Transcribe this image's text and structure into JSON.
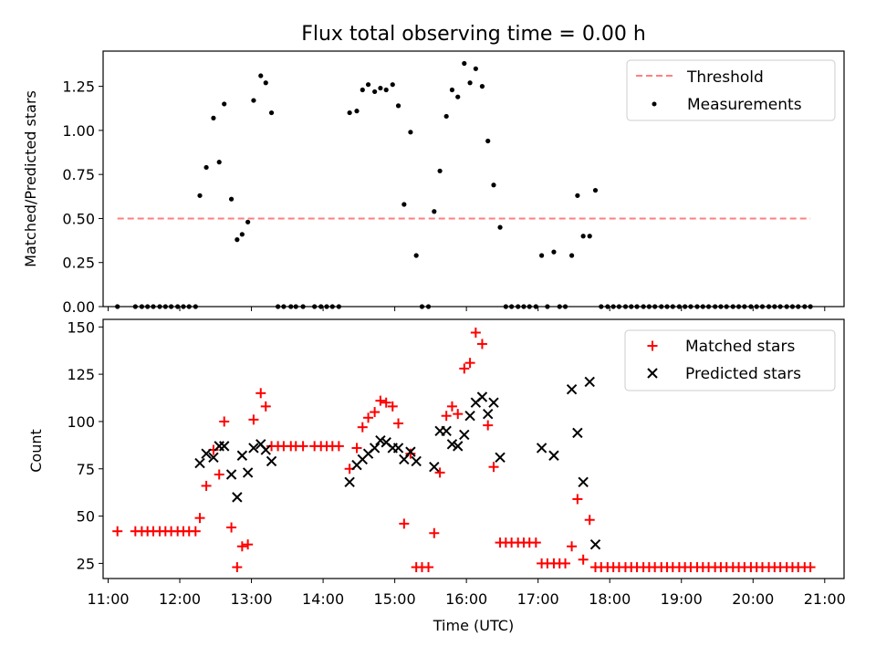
{
  "chart_data": [
    {
      "type": "scatter",
      "title": "Flux total observing time = 0.00 h",
      "xlabel": "",
      "ylabel": "Matched/Predicted stars",
      "xlim": [
        10.93,
        21.27
      ],
      "ylim": [
        0,
        1.45
      ],
      "yticks": [
        0.0,
        0.25,
        0.5,
        0.75,
        1.0,
        1.25
      ],
      "ytick_labels": [
        "0.00",
        "0.25",
        "0.50",
        "0.75",
        "1.00",
        "1.25"
      ],
      "legend_position": "top-right",
      "threshold": {
        "name": "Threshold",
        "value": 0.5,
        "x_range": [
          11.13,
          20.8
        ],
        "color": "#ff7f7f"
      },
      "series": [
        {
          "name": "Measurements",
          "color": "#000000",
          "marker": "dot",
          "x": [
            11.13,
            11.38,
            11.47,
            11.55,
            11.63,
            11.72,
            11.8,
            11.88,
            11.97,
            12.05,
            12.13,
            12.22,
            12.28,
            12.37,
            12.47,
            12.55,
            12.62,
            12.72,
            12.8,
            12.87,
            12.95,
            13.03,
            13.13,
            13.2,
            13.28,
            13.37,
            13.45,
            13.55,
            13.62,
            13.72,
            13.88,
            13.97,
            14.05,
            14.13,
            14.22,
            14.37,
            14.47,
            14.55,
            14.63,
            14.72,
            14.8,
            14.88,
            14.97,
            15.05,
            15.13,
            15.22,
            15.3,
            15.38,
            15.47,
            15.55,
            15.63,
            15.72,
            15.8,
            15.88,
            15.97,
            16.05,
            16.13,
            16.22,
            16.3,
            16.38,
            16.47,
            16.55,
            16.63,
            16.72,
            16.8,
            16.88,
            16.97,
            17.05,
            17.13,
            17.22,
            17.3,
            17.38,
            17.47,
            17.55,
            17.63,
            17.72,
            17.8,
            17.88,
            17.97,
            18.05,
            18.13,
            18.22,
            18.3,
            18.38,
            18.47,
            18.55,
            18.63,
            18.72,
            18.8,
            18.88,
            18.97,
            19.05,
            19.13,
            19.22,
            19.3,
            19.38,
            19.47,
            19.55,
            19.63,
            19.72,
            19.8,
            19.88,
            19.97,
            20.05,
            20.13,
            20.22,
            20.3,
            20.38,
            20.47,
            20.55,
            20.63,
            20.72,
            20.8
          ],
          "y": [
            0.0,
            0.0,
            0.0,
            0.0,
            0.0,
            0.0,
            0.0,
            0.0,
            0.0,
            0.0,
            0.0,
            0.0,
            0.63,
            0.79,
            1.07,
            0.82,
            1.15,
            0.61,
            0.38,
            0.41,
            0.48,
            1.17,
            1.31,
            1.27,
            1.1,
            0.0,
            0.0,
            0.0,
            0.0,
            0.0,
            0.0,
            0.0,
            0.0,
            0.0,
            0.0,
            1.1,
            1.11,
            1.23,
            1.26,
            1.22,
            1.24,
            1.23,
            1.26,
            1.14,
            0.58,
            0.99,
            0.29,
            0.0,
            0.0,
            0.54,
            0.77,
            1.08,
            1.23,
            1.19,
            1.38,
            1.27,
            1.35,
            1.25,
            0.94,
            0.69,
            0.45,
            0.0,
            0.0,
            0.0,
            0.0,
            0.0,
            0.0,
            0.29,
            0.0,
            0.31,
            0.0,
            0.0,
            0.29,
            0.63,
            0.4,
            0.4,
            0.66,
            0.0,
            0.0,
            0.0,
            0.0,
            0.0,
            0.0,
            0.0,
            0.0,
            0.0,
            0.0,
            0.0,
            0.0,
            0.0,
            0.0,
            0.0,
            0.0,
            0.0,
            0.0,
            0.0,
            0.0,
            0.0,
            0.0,
            0.0,
            0.0,
            0.0,
            0.0,
            0.0,
            0.0,
            0.0,
            0.0,
            0.0,
            0.0,
            0.0,
            0.0,
            0.0,
            0.0
          ]
        }
      ]
    },
    {
      "type": "scatter",
      "title": "",
      "xlabel": "Time (UTC)",
      "ylabel": "Count",
      "xlim": [
        10.93,
        21.27
      ],
      "ylim": [
        17,
        154
      ],
      "xticks": [
        11,
        12,
        13,
        14,
        15,
        16,
        17,
        18,
        19,
        20,
        21
      ],
      "xtick_labels": [
        "11:00",
        "12:00",
        "13:00",
        "14:00",
        "15:00",
        "16:00",
        "17:00",
        "18:00",
        "19:00",
        "20:00",
        "21:00"
      ],
      "yticks": [
        25,
        50,
        75,
        100,
        125,
        150
      ],
      "ytick_labels": [
        "25",
        "50",
        "75",
        "100",
        "125",
        "150"
      ],
      "legend_position": "top-right",
      "series": [
        {
          "name": "Matched stars",
          "color": "#ff0000",
          "marker": "plus",
          "x": [
            11.13,
            11.38,
            11.47,
            11.55,
            11.63,
            11.72,
            11.8,
            11.88,
            11.97,
            12.05,
            12.13,
            12.22,
            12.28,
            12.37,
            12.47,
            12.55,
            12.62,
            12.72,
            12.8,
            12.87,
            12.95,
            13.03,
            13.13,
            13.2,
            13.28,
            13.37,
            13.45,
            13.55,
            13.62,
            13.72,
            13.88,
            13.97,
            14.05,
            14.13,
            14.22,
            14.37,
            14.47,
            14.55,
            14.63,
            14.72,
            14.8,
            14.88,
            14.97,
            15.05,
            15.13,
            15.22,
            15.3,
            15.38,
            15.47,
            15.55,
            15.63,
            15.72,
            15.8,
            15.88,
            15.97,
            16.05,
            16.13,
            16.22,
            16.3,
            16.38,
            16.47,
            16.55,
            16.63,
            16.72,
            16.8,
            16.88,
            16.97,
            17.05,
            17.13,
            17.22,
            17.3,
            17.38,
            17.47,
            17.55,
            17.63,
            17.72,
            17.8,
            17.88,
            17.97,
            18.05,
            18.13,
            18.22,
            18.3,
            18.38,
            18.47,
            18.55,
            18.63,
            18.72,
            18.8,
            18.88,
            18.97,
            19.05,
            19.13,
            19.22,
            19.3,
            19.38,
            19.47,
            19.55,
            19.63,
            19.72,
            19.8,
            19.88,
            19.97,
            20.05,
            20.13,
            20.22,
            20.3,
            20.38,
            20.47,
            20.55,
            20.63,
            20.72,
            20.8
          ],
          "y": [
            42,
            42,
            42,
            42,
            42,
            42,
            42,
            42,
            42,
            42,
            42,
            42,
            49,
            66,
            85,
            72,
            100,
            44,
            23,
            34,
            35,
            101,
            115,
            108,
            87,
            87,
            87,
            87,
            87,
            87,
            87,
            87,
            87,
            87,
            87,
            75,
            86,
            97,
            102,
            105,
            111,
            110,
            108,
            99,
            46,
            83,
            23,
            23,
            23,
            41,
            73,
            103,
            108,
            104,
            128,
            131,
            147,
            141,
            98,
            76,
            36,
            36,
            36,
            36,
            36,
            36,
            36,
            25,
            25,
            25,
            25,
            25,
            34,
            59,
            27,
            48,
            23,
            23,
            23,
            23,
            23,
            23,
            23,
            23,
            23,
            23,
            23,
            23,
            23,
            23,
            23,
            23,
            23,
            23,
            23,
            23,
            23,
            23,
            23,
            23,
            23,
            23,
            23,
            23,
            23,
            23,
            23,
            23,
            23,
            23,
            23,
            23,
            23
          ]
        },
        {
          "name": "Predicted stars",
          "color": "#000000",
          "marker": "x",
          "x": [
            12.28,
            12.37,
            12.47,
            12.55,
            12.62,
            12.72,
            12.8,
            12.87,
            12.95,
            13.03,
            13.13,
            13.2,
            13.28,
            14.37,
            14.47,
            14.55,
            14.63,
            14.72,
            14.8,
            14.88,
            14.97,
            15.05,
            15.13,
            15.22,
            15.3,
            15.55,
            15.63,
            15.72,
            15.8,
            15.88,
            15.97,
            16.05,
            16.13,
            16.22,
            16.3,
            16.38,
            16.47,
            17.05,
            17.22,
            17.47,
            17.55,
            17.63,
            17.72,
            17.8
          ],
          "y": [
            78,
            83,
            81,
            87,
            87,
            72,
            60,
            82,
            73,
            86,
            88,
            85,
            79,
            68,
            77,
            80,
            83,
            86,
            90,
            89,
            86,
            86,
            80,
            84,
            79,
            76,
            95,
            95,
            88,
            87,
            93,
            103,
            110,
            113,
            104,
            110,
            81,
            86,
            82,
            117,
            94,
            68,
            121,
            35
          ]
        }
      ]
    }
  ]
}
